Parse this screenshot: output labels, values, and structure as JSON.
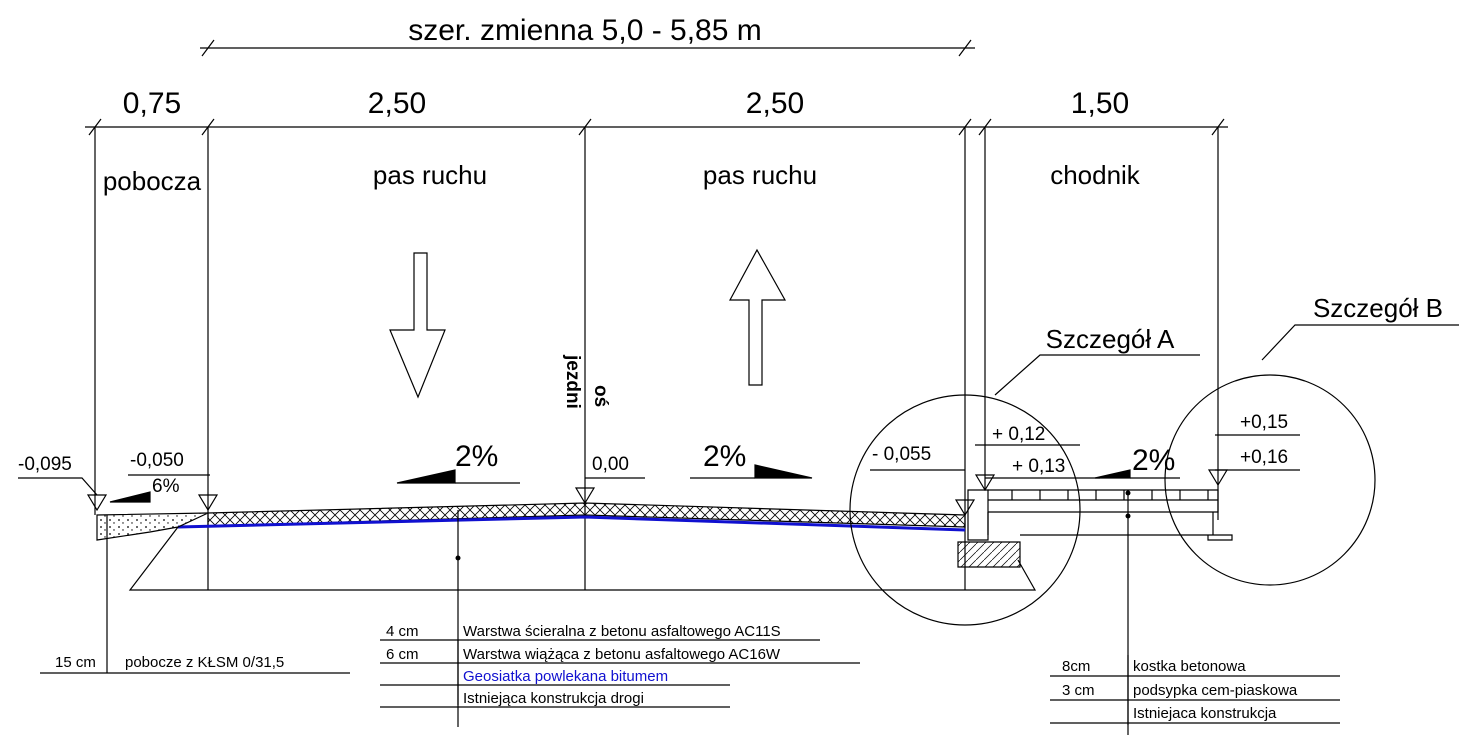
{
  "header": {
    "title": "szer. zmienna 5,0 - 5,85 m"
  },
  "dimensions": [
    "0,75",
    "2,50",
    "2,50",
    "1,50"
  ],
  "zones": [
    "pobocza",
    "pas ruchu",
    "pas ruchu",
    "chodnik"
  ],
  "details": [
    "Szczegół A",
    "Szczegół B"
  ],
  "axis_label": [
    "oś",
    "jezdni"
  ],
  "levels": [
    "-0,095",
    "-0,050",
    "6%",
    "2%",
    "0,00",
    "2%",
    "- 0,055",
    "+ 0,12",
    "+ 0,13",
    "2%",
    "+0,15",
    "+0,16"
  ],
  "road_layers": [
    {
      "thickness": "4 cm",
      "name": "Warstwa ścieralna z betonu asfaltowego AC11S"
    },
    {
      "thickness": "6 cm",
      "name": "Warstwa wiążąca z betonu asfaltowego AC16W"
    },
    {
      "name": "Geosiatka powlekana bitumem"
    },
    {
      "name": "Istniejąca konstrukcja drogi"
    }
  ],
  "shoulder_layer": {
    "thickness": "15 cm",
    "name": "pobocze z KŁSM 0/31,5"
  },
  "sidewalk_layers": [
    {
      "thickness": "8cm",
      "name": "kostka betonowa"
    },
    {
      "thickness": "3 cm",
      "name": "podsypka cem-piaskowa"
    },
    {
      "name": "Istniejaca konstrukcja"
    }
  ]
}
